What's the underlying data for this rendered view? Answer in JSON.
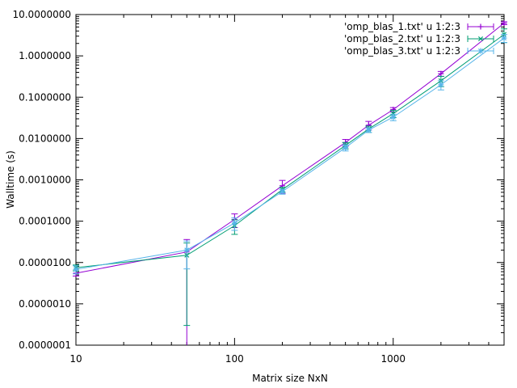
{
  "chart_data": {
    "type": "line",
    "xlabel": "Matrix size NxN",
    "ylabel": "Walltime (s)",
    "x_scale": "log",
    "y_scale": "log",
    "xlim": [
      10,
      5000
    ],
    "ylim": [
      1e-07,
      10
    ],
    "grid": false,
    "legend_position": "top-right",
    "x_ticks": [
      {
        "value": 10,
        "label": "10"
      },
      {
        "value": 100,
        "label": "100"
      },
      {
        "value": 1000,
        "label": "1000"
      }
    ],
    "y_ticks": [
      {
        "value": 1e-07,
        "label": "0.0000001"
      },
      {
        "value": 1e-06,
        "label": "0.0000010"
      },
      {
        "value": 1e-05,
        "label": "0.0000100"
      },
      {
        "value": 0.0001,
        "label": "0.0001000"
      },
      {
        "value": 0.001,
        "label": "0.0010000"
      },
      {
        "value": 0.01,
        "label": "0.0100000"
      },
      {
        "value": 0.1,
        "label": "0.1000000"
      },
      {
        "value": 1,
        "label": "1.0000000"
      },
      {
        "value": 10,
        "label": "10.0000000"
      }
    ],
    "series": [
      {
        "name": "'omp_blas_1.txt' u 1:2:3",
        "color": "#9400d3",
        "marker": "plus",
        "points": [
          {
            "x": 10,
            "y": 5.5e-06,
            "err": 8e-07
          },
          {
            "x": 50,
            "y": 1.8e-05,
            "err": 1.8e-05
          },
          {
            "x": 100,
            "y": 0.00011,
            "err": 4e-05
          },
          {
            "x": 200,
            "y": 0.00072,
            "err": 0.00025
          },
          {
            "x": 500,
            "y": 0.008,
            "err": 0.0015
          },
          {
            "x": 700,
            "y": 0.021,
            "err": 0.005
          },
          {
            "x": 1000,
            "y": 0.05,
            "err": 0.006
          },
          {
            "x": 2000,
            "y": 0.37,
            "err": 0.05
          },
          {
            "x": 5000,
            "y": 6.2,
            "err": 0.5
          }
        ]
      },
      {
        "name": "'omp_blas_2.txt' u 1:2:3",
        "color": "#009e73",
        "marker": "cross",
        "points": [
          {
            "x": 10,
            "y": 7.5e-06,
            "err": 1.2e-06
          },
          {
            "x": 50,
            "y": 1.5e-05,
            "err": 1.47e-05
          },
          {
            "x": 100,
            "y": 7.8e-05,
            "err": 3e-05
          },
          {
            "x": 200,
            "y": 0.00058,
            "err": 8e-05
          },
          {
            "x": 500,
            "y": 0.0068,
            "err": 0.0012
          },
          {
            "x": 700,
            "y": 0.017,
            "err": 0.003
          },
          {
            "x": 1000,
            "y": 0.04,
            "err": 0.008
          },
          {
            "x": 2000,
            "y": 0.25,
            "err": 0.07
          },
          {
            "x": 5000,
            "y": 3.3,
            "err": 1.2
          }
        ]
      },
      {
        "name": "'omp_blas_3.txt' u 1:2:3",
        "color": "#56b4e9",
        "marker": "star",
        "points": [
          {
            "x": 10,
            "y": 6.8e-06,
            "err": 1.5e-06
          },
          {
            "x": 50,
            "y": 2e-05,
            "err": 1.3e-05
          },
          {
            "x": 100,
            "y": 9e-05,
            "err": 3e-05
          },
          {
            "x": 200,
            "y": 0.00052,
            "err": 7e-05
          },
          {
            "x": 500,
            "y": 0.006,
            "err": 0.001
          },
          {
            "x": 700,
            "y": 0.016,
            "err": 0.002
          },
          {
            "x": 1000,
            "y": 0.033,
            "err": 0.006
          },
          {
            "x": 2000,
            "y": 0.2,
            "err": 0.05
          },
          {
            "x": 5000,
            "y": 2.7,
            "err": 0.6
          }
        ]
      }
    ]
  }
}
